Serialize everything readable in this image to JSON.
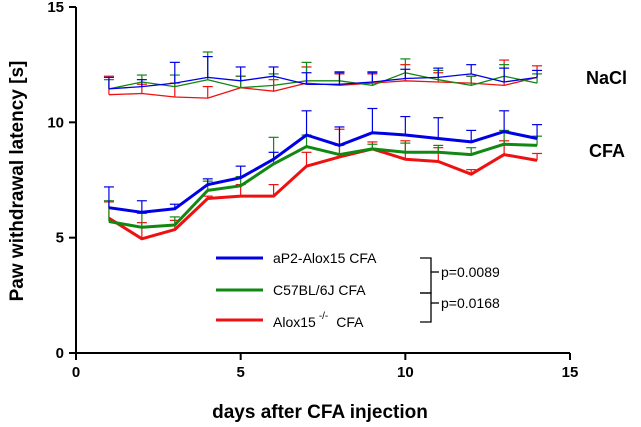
{
  "chart_data": {
    "type": "line",
    "title": "",
    "xlabel": "days after CFA injection",
    "ylabel": "Paw withdrawal latency [s]",
    "xlim": [
      0,
      15
    ],
    "ylim": [
      0,
      15
    ],
    "xticks": [
      0,
      5,
      10,
      15
    ],
    "yticks": [
      0,
      5,
      10,
      15
    ],
    "x": [
      1,
      2,
      3,
      4,
      5,
      6,
      7,
      8,
      9,
      10,
      11,
      12,
      13,
      14
    ],
    "group_labels": [
      "NaCl",
      "CFA"
    ],
    "series": [
      {
        "name": "aP2-Alox15 CFA",
        "legend": true,
        "color": "#0000e6",
        "width": 3,
        "values": [
          6.3,
          6.1,
          6.25,
          7.3,
          7.6,
          8.4,
          9.45,
          9.0,
          9.55,
          9.45,
          9.3,
          9.15,
          9.6,
          9.3
        ],
        "err": [
          0.9,
          0.5,
          0.2,
          0.25,
          0.5,
          0.3,
          1.05,
          0.8,
          1.05,
          0.8,
          0.9,
          0.5,
          0.9,
          0.6
        ]
      },
      {
        "name": "C57BL/6J CFA",
        "legend": true,
        "color": "#118811",
        "width": 3,
        "values": [
          5.7,
          5.45,
          5.55,
          7.05,
          7.25,
          8.2,
          8.95,
          8.6,
          8.85,
          8.7,
          8.7,
          8.6,
          9.05,
          9.0
        ],
        "err": [
          0.9,
          0.6,
          0.35,
          0.4,
          0.4,
          1.15,
          0.5,
          0.4,
          0.2,
          0.4,
          0.3,
          0.3,
          0.6,
          0.4
        ]
      },
      {
        "name": "Alox15",
        "legend_sup": "-/-",
        "legend_suffix": "CFA",
        "legend": true,
        "color": "#ee1111",
        "width": 3,
        "values": [
          5.85,
          4.95,
          5.35,
          6.7,
          6.8,
          6.8,
          8.1,
          8.5,
          8.85,
          8.4,
          8.3,
          7.75,
          8.6,
          8.35
        ],
        "err": [
          0.7,
          0.7,
          0.4,
          0.1,
          0.5,
          0.5,
          0.6,
          1.2,
          0.3,
          0.8,
          0.6,
          0.2,
          0.6,
          0.3
        ]
      },
      {
        "name": "aP2-Alox15 NaCl",
        "legend": false,
        "color": "#0000e6",
        "width": 1.3,
        "values": [
          11.45,
          11.55,
          11.7,
          11.95,
          11.8,
          12.0,
          11.65,
          11.65,
          11.75,
          11.9,
          11.95,
          12.1,
          11.75,
          11.95
        ],
        "err": [
          0.5,
          0.3,
          0.9,
          0.9,
          0.6,
          0.4,
          0.5,
          0.5,
          0.4,
          0.4,
          0.4,
          0.4,
          0.6,
          0.3
        ]
      },
      {
        "name": "C57BL/6J NaCl",
        "legend": false,
        "color": "#118811",
        "width": 1.3,
        "values": [
          11.45,
          11.75,
          11.55,
          11.85,
          11.5,
          11.6,
          11.8,
          11.8,
          11.6,
          12.15,
          11.85,
          11.6,
          12.0,
          11.7
        ],
        "err": [
          0.4,
          0.3,
          0.5,
          1.2,
          0.5,
          0.5,
          0.8,
          0.4,
          0.6,
          0.6,
          0.4,
          0.4,
          0.5,
          0.4
        ]
      },
      {
        "name": "Alox15-/- NaCl",
        "legend": false,
        "color": "#ee1111",
        "width": 1.3,
        "values": [
          11.2,
          11.25,
          11.1,
          11.05,
          11.5,
          11.35,
          11.7,
          11.6,
          11.7,
          11.8,
          11.75,
          11.7,
          11.6,
          11.95
        ],
        "err": [
          0.8,
          0.4,
          0.6,
          0.5,
          0.5,
          0.5,
          0.7,
          0.5,
          0.4,
          0.7,
          0.4,
          0.3,
          1.1,
          0.5
        ]
      }
    ],
    "annotations": [
      "p=0.0089",
      "p=0.0168"
    ]
  }
}
